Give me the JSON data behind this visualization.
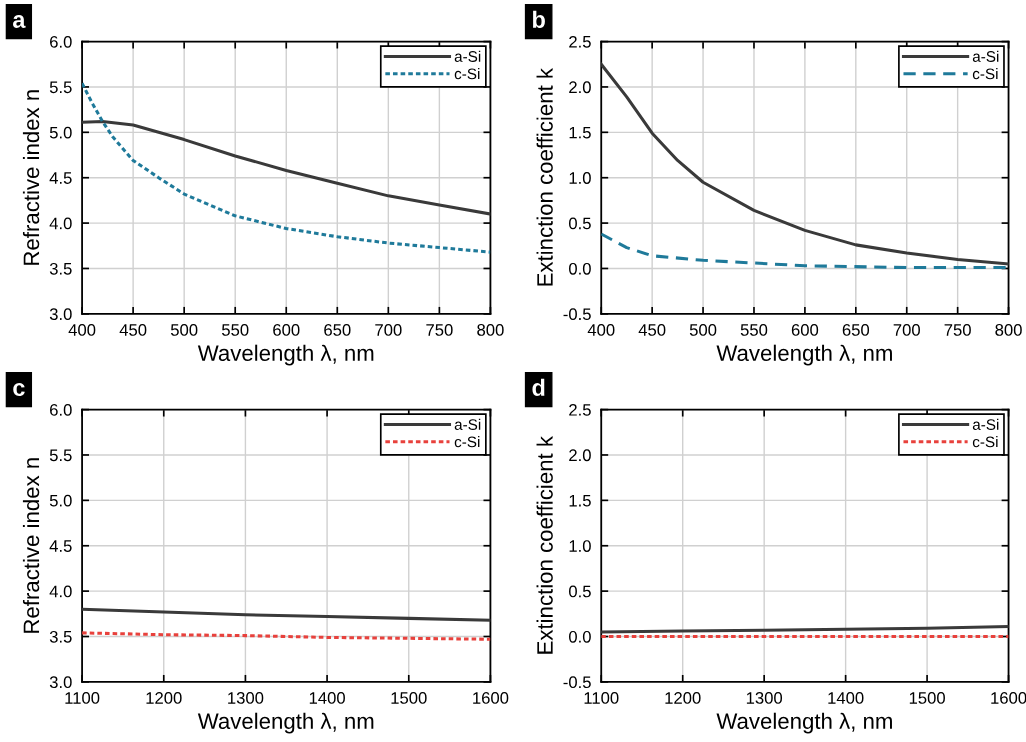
{
  "chart_data": [
    {
      "type": "line",
      "annotations": [
        "a"
      ],
      "xlabel": "Wavelength λ, nm",
      "ylabel": "Refractive index n",
      "xlim": [
        400,
        800
      ],
      "xticks": [
        400,
        450,
        500,
        550,
        600,
        650,
        700,
        750,
        800
      ],
      "ylim": [
        3.0,
        6.0
      ],
      "yticks": [
        {
          "value": 3.0,
          "label": "3.0"
        },
        3.5,
        {
          "value": 4.0,
          "label": "4.0"
        },
        4.5,
        {
          "value": 5.0,
          "label": "5.0"
        },
        5.5,
        {
          "value": 6.0,
          "label": "6.0"
        }
      ],
      "grid": true,
      "legend": "top right",
      "series": [
        {
          "name": "a-Si",
          "color": "#3a3a3a",
          "line_style": "solid",
          "x": [
            400,
            420,
            450,
            475,
            500,
            550,
            600,
            650,
            700,
            750,
            800
          ],
          "values": [
            5.11,
            5.12,
            5.08,
            5.0,
            4.92,
            4.74,
            4.58,
            4.44,
            4.3,
            4.2,
            4.1
          ]
        },
        {
          "name": "c-Si",
          "color": "#1f7a9a",
          "line_style": "dotted",
          "x": [
            400,
            410,
            420,
            430,
            450,
            475,
            500,
            550,
            600,
            650,
            700,
            750,
            800
          ],
          "values": [
            5.54,
            5.32,
            5.12,
            4.95,
            4.69,
            4.5,
            4.32,
            4.08,
            3.94,
            3.85,
            3.78,
            3.73,
            3.68
          ]
        }
      ]
    },
    {
      "type": "line",
      "annotations": [
        "b"
      ],
      "xlabel": "Wavelength λ, nm",
      "ylabel": "Extinction coefficient k",
      "xlim": [
        400,
        800
      ],
      "xticks": [
        400,
        450,
        500,
        550,
        600,
        650,
        700,
        750,
        800
      ],
      "ylim": [
        -0.5,
        2.5
      ],
      "yticks": [
        -0.5,
        {
          "value": 0.0,
          "label": "0.0"
        },
        0.5,
        {
          "value": 1.0,
          "label": "1.0"
        },
        1.5,
        {
          "value": 2.0,
          "label": "2.0"
        },
        2.5
      ],
      "grid": true,
      "legend": "top right",
      "series": [
        {
          "name": "a-Si",
          "color": "#3a3a3a",
          "line_style": "solid",
          "x": [
            400,
            425,
            450,
            475,
            500,
            550,
            600,
            650,
            700,
            750,
            800
          ],
          "values": [
            2.25,
            1.89,
            1.49,
            1.19,
            0.95,
            0.64,
            0.42,
            0.26,
            0.17,
            0.1,
            0.05
          ]
        },
        {
          "name": "c-Si",
          "color": "#1f7a9a",
          "line_style": "dashed",
          "x": [
            400,
            425,
            450,
            500,
            550,
            600,
            700,
            800
          ],
          "values": [
            0.38,
            0.23,
            0.14,
            0.09,
            0.06,
            0.03,
            0.01,
            0.01
          ]
        }
      ]
    },
    {
      "type": "line",
      "annotations": [
        "c"
      ],
      "xlabel": "Wavelength λ, nm",
      "ylabel": "Refractive index n",
      "xlim": [
        1100,
        1600
      ],
      "xticks": [
        1100,
        1200,
        1300,
        1400,
        1500,
        1600
      ],
      "ylim": [
        3.0,
        6.0
      ],
      "yticks": [
        {
          "value": 3.0,
          "label": "3.0"
        },
        3.5,
        {
          "value": 4.0,
          "label": "4.0"
        },
        4.5,
        {
          "value": 5.0,
          "label": "5.0"
        },
        5.5,
        {
          "value": 6.0,
          "label": "6.0"
        }
      ],
      "grid": true,
      "legend": "top right",
      "series": [
        {
          "name": "a-Si",
          "color": "#3a3a3a",
          "line_style": "solid",
          "x": [
            1100,
            1200,
            1300,
            1400,
            1500,
            1600
          ],
          "values": [
            3.8,
            3.77,
            3.74,
            3.72,
            3.7,
            3.68
          ]
        },
        {
          "name": "c-Si",
          "color": "#e8413c",
          "line_style": "dotted",
          "x": [
            1100,
            1200,
            1300,
            1400,
            1500,
            1600
          ],
          "values": [
            3.54,
            3.52,
            3.51,
            3.49,
            3.48,
            3.47
          ]
        }
      ]
    },
    {
      "type": "line",
      "annotations": [
        "d"
      ],
      "xlabel": "Wavelength λ, nm",
      "ylabel": "Extinction coefficient k",
      "xlim": [
        1100,
        1600
      ],
      "xticks": [
        1100,
        1200,
        1300,
        1400,
        1500,
        1600
      ],
      "ylim": [
        -0.5,
        2.5
      ],
      "yticks": [
        -0.5,
        {
          "value": 0.0,
          "label": "0.0"
        },
        0.5,
        {
          "value": 1.0,
          "label": "1.0"
        },
        1.5,
        {
          "value": 2.0,
          "label": "2.0"
        },
        2.5
      ],
      "grid": true,
      "legend": "top right",
      "series": [
        {
          "name": "a-Si",
          "color": "#3a3a3a",
          "line_style": "solid",
          "x": [
            1100,
            1200,
            1300,
            1400,
            1500,
            1600
          ],
          "values": [
            0.05,
            0.06,
            0.07,
            0.08,
            0.09,
            0.11
          ]
        },
        {
          "name": "c-Si",
          "color": "#e8413c",
          "line_style": "dotted",
          "x": [
            1100,
            1200,
            1300,
            1400,
            1500,
            1600
          ],
          "values": [
            0.0,
            0.0,
            0.0,
            0.0,
            0.0,
            0.0
          ]
        }
      ]
    }
  ]
}
